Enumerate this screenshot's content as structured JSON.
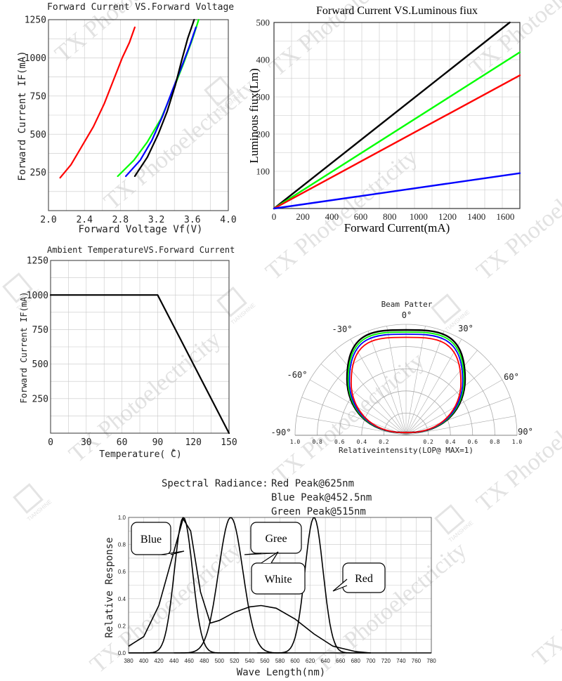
{
  "watermark": {
    "text": "TX Photoelectricity",
    "logo_text": "TIANSHINE"
  },
  "chart_data": [
    {
      "id": "fv",
      "type": "line",
      "title": "Forward Current VS.Forward Voltage",
      "xlabel": "Forward Voltage Vf(V)",
      "ylabel": "Forward Current IF(mA)",
      "xlim": [
        2.0,
        4.0
      ],
      "ylim": [
        0,
        1250
      ],
      "xticks": [
        "2.0",
        "2.4",
        "2.8",
        "3.2",
        "3.6",
        "4.0"
      ],
      "yticks": [
        "250",
        "500",
        "750",
        "1000",
        "1250"
      ],
      "grid": true,
      "series": [
        {
          "color": "#ff0000",
          "points": [
            [
              2.13,
              215
            ],
            [
              2.25,
              300
            ],
            [
              2.35,
              400
            ],
            [
              2.5,
              550
            ],
            [
              2.62,
              700
            ],
            [
              2.72,
              850
            ],
            [
              2.82,
              1000
            ],
            [
              2.9,
              1100
            ],
            [
              2.96,
              1200
            ]
          ]
        },
        {
          "color": "#00ff00",
          "points": [
            [
              2.77,
              225
            ],
            [
              2.95,
              330
            ],
            [
              3.1,
              450
            ],
            [
              3.25,
              600
            ],
            [
              3.38,
              780
            ],
            [
              3.5,
              960
            ],
            [
              3.6,
              1120
            ],
            [
              3.67,
              1250
            ]
          ]
        },
        {
          "color": "#0000ff",
          "points": [
            [
              2.86,
              225
            ],
            [
              3.02,
              330
            ],
            [
              3.15,
              460
            ],
            [
              3.27,
              620
            ],
            [
              3.38,
              790
            ],
            [
              3.48,
              940
            ],
            [
              3.57,
              1080
            ],
            [
              3.64,
              1200
            ]
          ]
        },
        {
          "color": "#000000",
          "points": [
            [
              2.96,
              225
            ],
            [
              3.1,
              350
            ],
            [
              3.22,
              500
            ],
            [
              3.32,
              650
            ],
            [
              3.41,
              820
            ],
            [
              3.48,
              980
            ],
            [
              3.55,
              1130
            ],
            [
              3.62,
              1250
            ]
          ]
        }
      ]
    },
    {
      "id": "flux",
      "type": "line",
      "title": "Forward Current VS.Luminous fiux",
      "xlabel": "Forward Current(mA)",
      "ylabel": "Luminous fiux(Lm)",
      "xlim": [
        0,
        1700
      ],
      "ylim": [
        0,
        500
      ],
      "xticks": [
        "0",
        "200",
        "400",
        "600",
        "800",
        "1000",
        "1200",
        "1400",
        "1600"
      ],
      "yticks": [
        "100",
        "200",
        "300",
        "400",
        "500"
      ],
      "grid": true,
      "series": [
        {
          "color": "#000000",
          "points": [
            [
              0,
              0
            ],
            [
              1630,
              500
            ]
          ]
        },
        {
          "color": "#00ff00",
          "points": [
            [
              0,
              0
            ],
            [
              1700,
              420
            ]
          ]
        },
        {
          "color": "#ff0000",
          "points": [
            [
              0,
              0
            ],
            [
              1700,
              358
            ]
          ]
        },
        {
          "color": "#0000ff",
          "points": [
            [
              0,
              0
            ],
            [
              1700,
              95
            ]
          ]
        }
      ]
    },
    {
      "id": "derating",
      "type": "line",
      "title": "Ambient TemperatureVS.Forward Current",
      "xlabel": "Temperature(  ̊C)",
      "ylabel": "Forward Current IF(mA)",
      "xlim": [
        0,
        150
      ],
      "ylim": [
        0,
        1250
      ],
      "xticks": [
        "0",
        "30",
        "60",
        "90",
        "120",
        "150"
      ],
      "yticks": [
        "250",
        "500",
        "750",
        "1000",
        "1250"
      ],
      "grid": true,
      "series": [
        {
          "color": "#000000",
          "points": [
            [
              0,
              1000
            ],
            [
              90,
              1000
            ],
            [
              150,
              0
            ]
          ]
        }
      ]
    },
    {
      "id": "beam",
      "type": "polar",
      "title": "Beam Patter",
      "xlabel": "Relativeintensity(LOP@ MAX=1)",
      "angle_labels": [
        "0°",
        "30°",
        "60°",
        "90°",
        "-30°",
        "-60°",
        "-90°"
      ],
      "radial_labels": [
        "1.0",
        "0.8",
        "0.6",
        "0.4",
        "0.2",
        "0.2",
        "0.4",
        "0.6",
        "0.8",
        "1.0"
      ],
      "series": [
        {
          "color": "#000000",
          "max": 1.0
        },
        {
          "color": "#00ff00",
          "max": 0.98
        },
        {
          "color": "#0000ff",
          "max": 0.96
        },
        {
          "color": "#ff0000",
          "max": 0.93
        }
      ]
    },
    {
      "id": "spectrum",
      "type": "line",
      "title": "Spectral Radiance:",
      "peaks_text": [
        "Red Peak@625nm",
        "Blue Peak@452.5nm",
        "Green Peak@515nm"
      ],
      "xlabel": "Wave Length(nm)",
      "ylabel": "Relative Response",
      "xlim": [
        380,
        780
      ],
      "ylim": [
        0,
        1.0
      ],
      "xticks": [
        "380",
        "400",
        "420",
        "440",
        "460",
        "480",
        "500",
        "520",
        "540",
        "560",
        "580",
        "600",
        "620",
        "640",
        "660",
        "680",
        "700",
        "720",
        "740",
        "760",
        "780"
      ],
      "yticks": [
        "0.0",
        "0.2",
        "0.4",
        "0.6",
        "0.8",
        "1.0"
      ],
      "grid": true,
      "series": [
        {
          "name": "Blue",
          "color": "#000000",
          "peak": 452.5,
          "width": 12
        },
        {
          "name": "Gree",
          "color": "#000000",
          "peak": 515,
          "width": 16
        },
        {
          "name": "White",
          "color": "#000000",
          "points": [
            [
              380,
              0.05
            ],
            [
              400,
              0.12
            ],
            [
              420,
              0.35
            ],
            [
              440,
              0.75
            ],
            [
              452,
              0.99
            ],
            [
              462,
              0.9
            ],
            [
              475,
              0.45
            ],
            [
              488,
              0.22
            ],
            [
              500,
              0.24
            ],
            [
              520,
              0.3
            ],
            [
              540,
              0.34
            ],
            [
              555,
              0.35
            ],
            [
              575,
              0.33
            ],
            [
              600,
              0.25
            ],
            [
              625,
              0.14
            ],
            [
              650,
              0.05
            ],
            [
              680,
              0.01
            ],
            [
              700,
              0.0
            ]
          ]
        },
        {
          "name": "Red",
          "color": "#000000",
          "peak": 625,
          "width": 12
        }
      ]
    }
  ]
}
